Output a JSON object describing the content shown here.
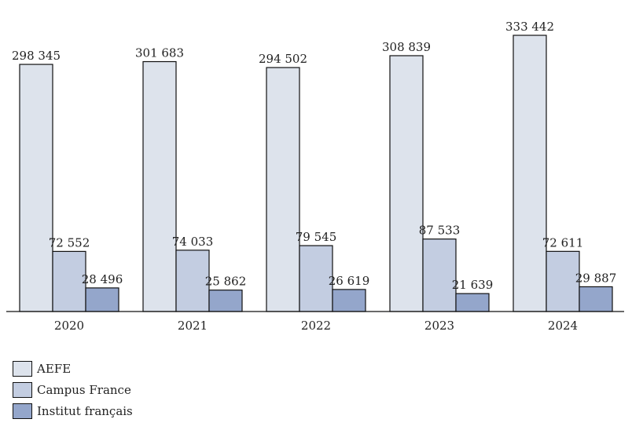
{
  "chart_data": {
    "type": "bar",
    "categories": [
      "2020",
      "2021",
      "2022",
      "2023",
      "2024"
    ],
    "series": [
      {
        "name": "AEFE",
        "color": "#dde3ec",
        "values": [
          298345,
          301683,
          294502,
          308839,
          333442
        ],
        "labels": [
          "298 345",
          "301 683",
          "294 502",
          "308 839",
          "333 442"
        ]
      },
      {
        "name": "Campus France",
        "color": "#c3cde1",
        "values": [
          72552,
          74033,
          79545,
          87533,
          72611
        ],
        "labels": [
          "72 552",
          "74 033",
          "79 545",
          "87 533",
          "72 611"
        ]
      },
      {
        "name": "Institut français",
        "color": "#94a6cb",
        "values": [
          28496,
          25862,
          26619,
          21639,
          29887
        ],
        "labels": [
          "28 496",
          "25 862",
          "26 619",
          "21 639",
          "29 887"
        ]
      }
    ],
    "ylim": [
      0,
      333442
    ],
    "grid": false,
    "legend_position": "bottom-left"
  }
}
